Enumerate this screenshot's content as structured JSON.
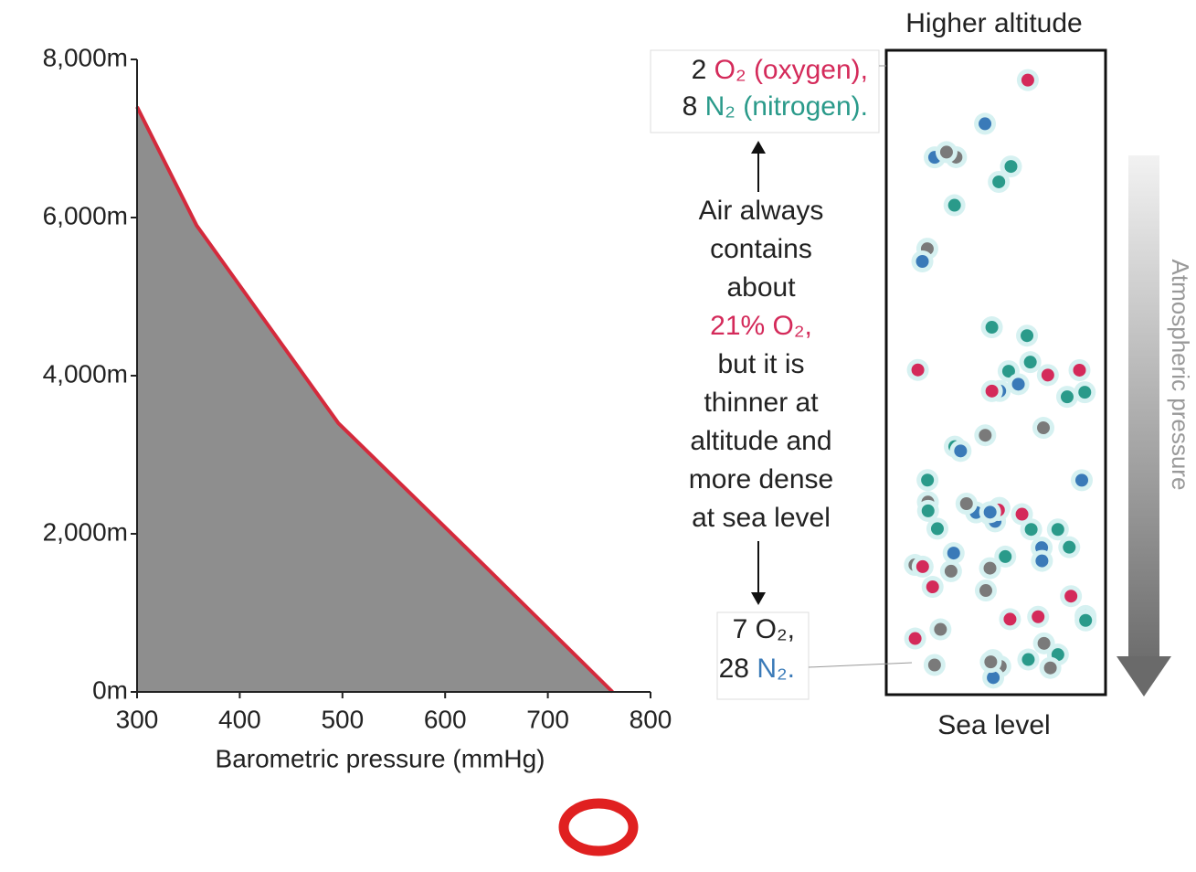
{
  "chart_data": {
    "type": "area",
    "x": [
      300,
      358,
      496,
      638,
      763
    ],
    "values": [
      7400,
      5900,
      3400,
      1600,
      0
    ],
    "color": "#d42a3c",
    "fill": "#8e8e8e",
    "xlabel": "Barometric pressure (mmHg)",
    "xlim": [
      300,
      800
    ],
    "ylim": [
      0,
      8000
    ],
    "xticks": [
      300,
      400,
      500,
      600,
      700,
      800
    ],
    "yticks": [
      {
        "value": 0,
        "label": "0m"
      },
      {
        "value": 2000,
        "label": "2,000m"
      },
      {
        "value": 4000,
        "label": "4,000m"
      },
      {
        "value": 6000,
        "label": "6,000m"
      },
      {
        "value": 8000,
        "label": "8,000m"
      }
    ]
  },
  "diagram": {
    "top_title": "Higher altitude",
    "bottom_title": "Sea level",
    "arrow_label": "Atmospheric pressure",
    "top_box": [
      [
        "2 ",
        "O₂ (oxygen),"
      ],
      [
        "8 ",
        "N₂ (nitrogen)."
      ]
    ],
    "note_lines_a": [
      "Air always",
      "contains",
      "about"
    ],
    "note_highlight": "21% O₂,",
    "note_lines_b": [
      "but it is",
      "thinner at",
      "altitude and",
      "more dense",
      "at sea level"
    ],
    "bottom_box": [
      [
        "7 O₂,",
        ""
      ],
      [
        "28 ",
        "N₂."
      ]
    ]
  }
}
